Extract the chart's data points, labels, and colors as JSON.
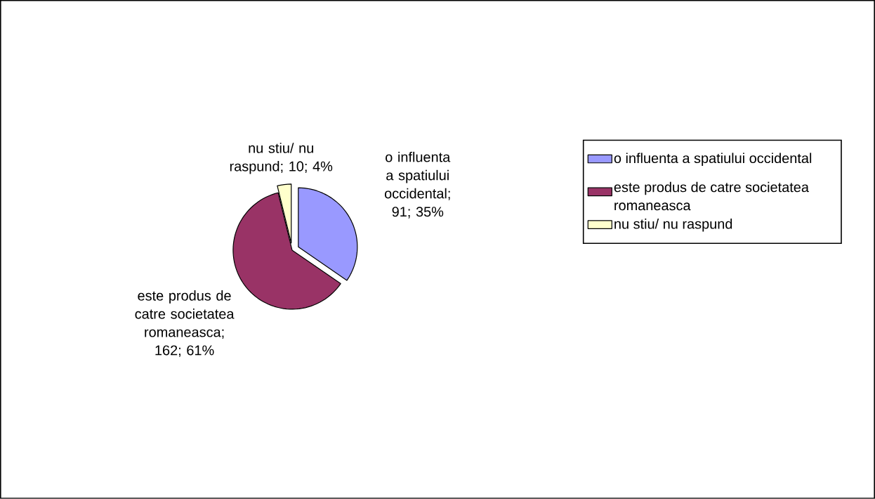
{
  "chart_data": {
    "type": "pie",
    "categories": [
      "o influenta a spatiului occidental",
      "este produs de catre societatea romaneasca",
      "nu stiu/ nu raspund"
    ],
    "values": [
      91,
      162,
      10
    ],
    "colors": [
      "#9999ff",
      "#993366",
      "#ffffcc"
    ],
    "value_labels": [
      "o influenta a spatiului occidental; 91; 35%",
      "este produs de catre societatea romaneasca; 162; 61%",
      "nu stiu/ nu raspund; 10; 4%"
    ],
    "legend": "right"
  }
}
